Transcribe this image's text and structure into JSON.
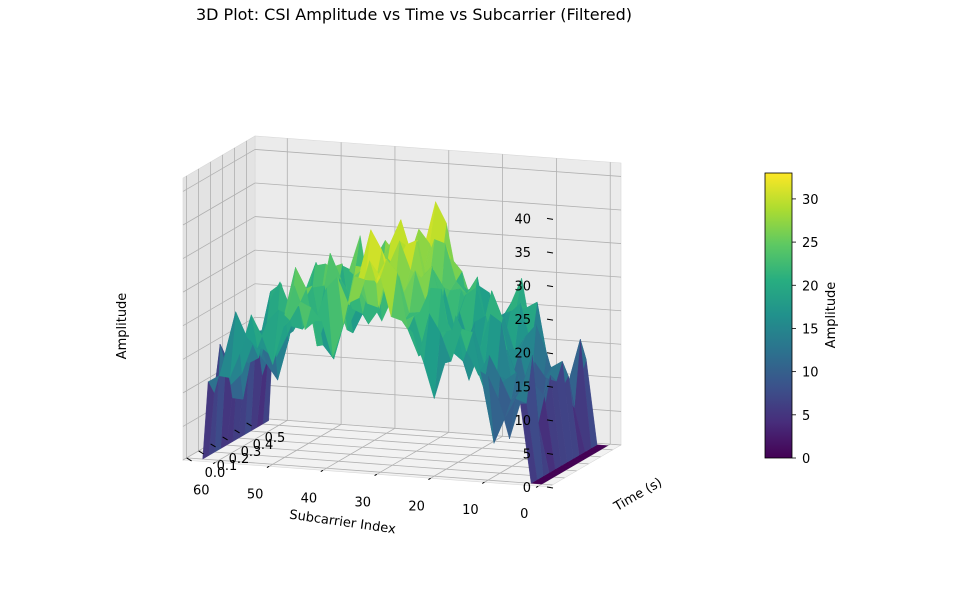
{
  "chart_data": {
    "type": "surface3d",
    "title": "3D Plot: CSI Amplitude vs Time vs Subcarrier (Filtered)",
    "xlabel": "Subcarrier Index",
    "ylabel": "Time (s)",
    "zlabel": "Amplitude",
    "xlim": [
      -2,
      66
    ],
    "ylim": [
      -0.03,
      0.57
    ],
    "zlim": [
      0,
      42
    ],
    "xticks": [
      0,
      10,
      20,
      30,
      40,
      50,
      60
    ],
    "yticks": [
      0.0,
      0.1,
      0.2,
      0.3,
      0.4,
      0.5
    ],
    "zticks": [
      0,
      5,
      10,
      15,
      20,
      25,
      30,
      35,
      40
    ],
    "colormap": "viridis",
    "grid": true,
    "subcarriers": [
      0,
      2,
      4,
      6,
      8,
      10,
      12,
      14,
      16,
      18,
      20,
      22,
      24,
      26,
      28,
      30,
      32,
      34,
      36,
      38,
      40,
      42,
      44,
      46,
      48,
      50,
      52,
      54,
      56,
      58,
      60,
      62,
      63
    ],
    "time": [
      0.0,
      0.05,
      0.1,
      0.15,
      0.2,
      0.25,
      0.3,
      0.35,
      0.4,
      0.45,
      0.5,
      0.55
    ],
    "amplitude_profile_by_subcarrier": [
      0,
      0,
      12,
      10,
      11,
      12,
      16,
      18,
      20,
      17,
      18,
      21,
      20,
      23,
      25,
      27,
      29,
      29,
      28,
      25,
      22,
      21,
      19,
      24,
      23,
      21,
      20,
      19,
      17,
      15,
      12,
      12,
      0
    ],
    "colorbar": {
      "label": "Amplitude",
      "ticks": [
        0,
        5,
        10,
        15,
        20,
        25,
        30
      ],
      "range": [
        0,
        33
      ]
    }
  }
}
